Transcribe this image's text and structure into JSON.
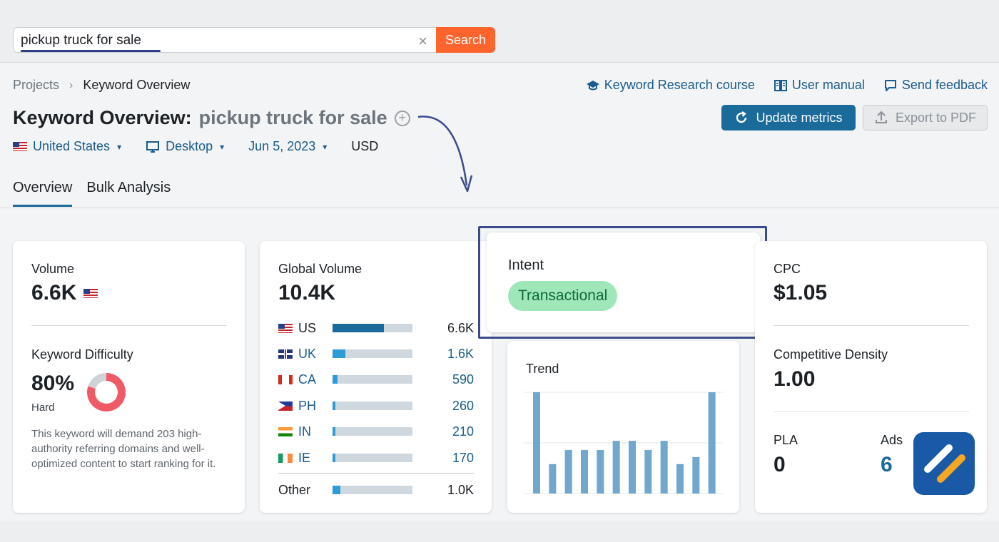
{
  "search": {
    "value": "pickup truck for sale",
    "button_label": "Search"
  },
  "breadcrumb": {
    "root": "Projects",
    "current": "Keyword Overview"
  },
  "top_links": [
    {
      "label": "Keyword Research course",
      "icon": "graduation-cap-icon"
    },
    {
      "label": "User manual",
      "icon": "book-icon"
    },
    {
      "label": "Send feedback",
      "icon": "feedback-icon"
    }
  ],
  "title": {
    "prefix": "Keyword Overview:",
    "keyword": "pickup truck for sale"
  },
  "actions": {
    "update_label": "Update metrics",
    "export_label": "Export to PDF"
  },
  "filters": {
    "country": "United States",
    "device": "Desktop",
    "date": "Jun 5, 2023",
    "currency": "USD"
  },
  "tabs": [
    {
      "label": "Overview",
      "active": true
    },
    {
      "label": "Bulk Analysis",
      "active": false
    }
  ],
  "volume": {
    "label": "Volume",
    "value": "6.6K"
  },
  "difficulty": {
    "label": "Keyword Difficulty",
    "value": "80%",
    "percent": 80,
    "level": "Hard",
    "description": "This keyword will demand 203 high-authority referring domains and well-optimized content to start ranking for it."
  },
  "global_volume": {
    "label": "Global Volume",
    "value": "10.4K",
    "rows": [
      {
        "country": "US",
        "value": "6.6K",
        "fraction": 0.64,
        "flag": "us"
      },
      {
        "country": "UK",
        "value": "1.6K",
        "fraction": 0.16,
        "flag": "uk"
      },
      {
        "country": "CA",
        "value": "590",
        "fraction": 0.06,
        "flag": "ca"
      },
      {
        "country": "PH",
        "value": "260",
        "fraction": 0.04,
        "flag": "ph"
      },
      {
        "country": "IN",
        "value": "210",
        "fraction": 0.04,
        "flag": "in"
      },
      {
        "country": "IE",
        "value": "170",
        "fraction": 0.04,
        "flag": "ie"
      }
    ],
    "other": {
      "label": "Other",
      "value": "1.0K",
      "fraction": 0.1
    }
  },
  "intent": {
    "label": "Intent",
    "value": "Transactional"
  },
  "trend": {
    "label": "Trend",
    "chart_data": {
      "type": "bar",
      "values": [
        100,
        29,
        43,
        43,
        43,
        52,
        52,
        43,
        52,
        29,
        36,
        100
      ],
      "ylim": [
        0,
        100
      ]
    }
  },
  "cpc": {
    "label": "CPC",
    "value": "$1.05"
  },
  "competitive_density": {
    "label": "Competitive Density",
    "value": "1.00"
  },
  "pla": {
    "label": "PLA",
    "value": "0"
  },
  "ads": {
    "label": "Ads",
    "value": "6"
  },
  "colors": {
    "accent": "#1a6a9a",
    "search_button": "#ff642d",
    "intent_badge": "#9fe6b9",
    "difficulty": "#f05a67",
    "bar_primary": "#1a6a9a",
    "bar_secondary": "#2e9bd6",
    "trend_bar": "#6fa8cc"
  }
}
